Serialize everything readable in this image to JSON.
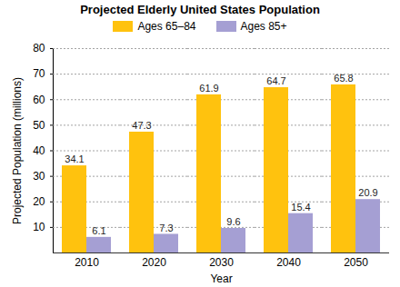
{
  "chart_data": {
    "type": "bar",
    "title": "Projected Elderly United States Population",
    "x_label": "Year",
    "y_label": "Projected Population (millions)",
    "categories": [
      "2010",
      "2020",
      "2030",
      "2040",
      "2050"
    ],
    "series": [
      {
        "name": "Ages 65–84",
        "color": "#ffc20e",
        "values": [
          34.1,
          47.3,
          61.9,
          64.7,
          65.8
        ]
      },
      {
        "name": "Ages 85+",
        "color": "#a59fd3",
        "values": [
          6.1,
          7.3,
          9.6,
          15.4,
          20.9
        ]
      }
    ],
    "ylim": [
      0,
      80
    ],
    "yticks": [
      10,
      20,
      30,
      40,
      50,
      60,
      70,
      80
    ],
    "grid": true,
    "data_labels": true,
    "legend": "top"
  }
}
